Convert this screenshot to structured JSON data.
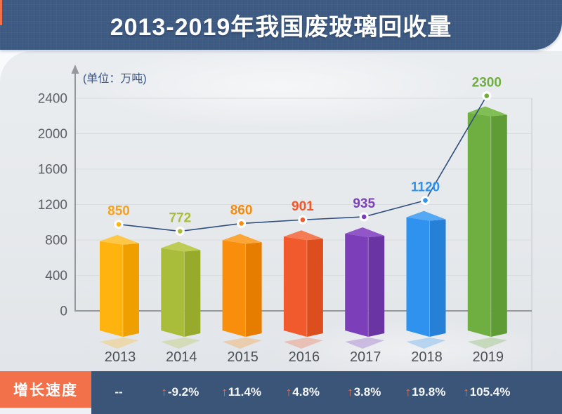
{
  "title": "2013-2019年我国废玻璃回收量",
  "unit_label": "(单位：万吨)",
  "chart_data": {
    "type": "bar",
    "title": "2013-2019年我国废玻璃回收量",
    "unit": "万吨",
    "categories": [
      "2013",
      "2014",
      "2015",
      "2016",
      "2017",
      "2018",
      "2019"
    ],
    "values": [
      850,
      772,
      860,
      901,
      935,
      1120,
      2300
    ],
    "yticks": [
      0,
      400,
      800,
      1200,
      1600,
      2000,
      2400
    ],
    "ylim": [
      0,
      2400
    ],
    "grid": true,
    "overlay_line": true,
    "growth_rate_percent": [
      null,
      -9.2,
      11.4,
      4.8,
      3.8,
      19.8,
      105.4
    ]
  },
  "footer": {
    "label": "增长速度",
    "growth": [
      {
        "text": "--",
        "up": false
      },
      {
        "text": "-9.2%",
        "up": true
      },
      {
        "text": "11.4%",
        "up": true
      },
      {
        "text": "4.8%",
        "up": true
      },
      {
        "text": "3.8%",
        "up": true
      },
      {
        "text": "19.8%",
        "up": true
      },
      {
        "text": "105.4%",
        "up": true
      }
    ]
  },
  "style": {
    "banner_navy": "#3D5A82",
    "footer_navy": "#3B5578",
    "accent_orange": "#F3714A",
    "trend_line": "#2F4E7D",
    "axis": "#97989D",
    "gridline": "#D9DCE0",
    "right_border": "#C4C7CD",
    "tick_text": "#5C6066",
    "year_text": "#4C4F55",
    "unit_text": "#39558A",
    "bars": [
      {
        "front": "#FFB30E",
        "side": "#EFA000",
        "top": "#FFC747",
        "label": "#F7A21C"
      },
      {
        "front": "#AABD3B",
        "side": "#97AA2C",
        "top": "#BCCC55",
        "label": "#A9BC3D"
      },
      {
        "front": "#F98D0C",
        "side": "#E67C00",
        "top": "#FBA636",
        "label": "#F98A07"
      },
      {
        "front": "#F15A2C",
        "side": "#DC4E1D",
        "top": "#F47B52",
        "label": "#F1592D"
      },
      {
        "front": "#7C3EB9",
        "side": "#6B34A3",
        "top": "#9157C9",
        "label": "#7C3EB9"
      },
      {
        "front": "#2E92EE",
        "side": "#2680D5",
        "top": "#55A8F3",
        "label": "#2E92EE"
      },
      {
        "front": "#6FAE41",
        "side": "#609C36",
        "top": "#81BE53",
        "label": "#6FAE41"
      }
    ]
  }
}
